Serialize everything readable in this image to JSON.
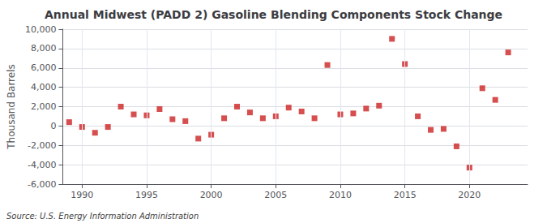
{
  "chart_data": {
    "type": "scatter",
    "title": "Annual Midwest (PADD 2) Gasoline Blending Components Stock Change",
    "ylabel": "Thousand Barrels",
    "annotations": [
      "Source: U.S. Energy Information Administration"
    ],
    "x": [
      1989,
      1990,
      1991,
      1992,
      1993,
      1994,
      1995,
      1996,
      1997,
      1998,
      1999,
      2000,
      2001,
      2002,
      2003,
      2004,
      2005,
      2006,
      2007,
      2008,
      2009,
      2010,
      2011,
      2012,
      2013,
      2014,
      2015,
      2016,
      2017,
      2018,
      2019,
      2020,
      2021,
      2022,
      2023
    ],
    "values": [
      400,
      -100,
      -700,
      -100,
      2000,
      1200,
      1100,
      1750,
      700,
      500,
      -1300,
      -900,
      800,
      2000,
      1400,
      800,
      1000,
      1900,
      1500,
      800,
      6300,
      1200,
      1300,
      1800,
      2100,
      9000,
      6400,
      1000,
      -400,
      -300,
      -2100,
      -4300,
      3900,
      2700,
      7600
    ],
    "color": "#cc2222",
    "marker": "square",
    "xlim": [
      1988.5,
      2024.5
    ],
    "xticks": [
      1990,
      1995,
      2000,
      2005,
      2010,
      2015,
      2020
    ],
    "ylim": [
      -6000,
      10000
    ],
    "yticks": [
      {
        "value": -6000,
        "label": "-6,000"
      },
      {
        "value": -4000,
        "label": "-4,000"
      },
      {
        "value": -2000,
        "label": "-2,000"
      },
      0,
      {
        "value": 2000,
        "label": "2,000"
      },
      {
        "value": 4000,
        "label": "4,000"
      },
      {
        "value": 6000,
        "label": "6,000"
      },
      {
        "value": 8000,
        "label": "8,000"
      },
      {
        "value": 10000,
        "label": "10,000"
      }
    ],
    "grid": true
  }
}
